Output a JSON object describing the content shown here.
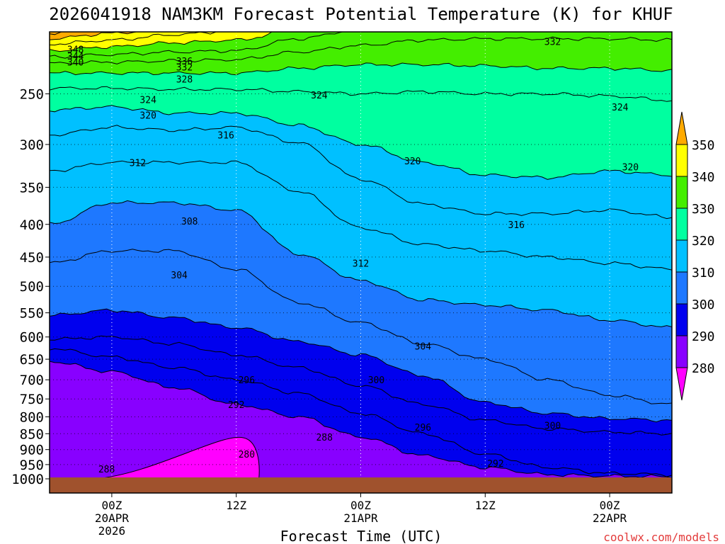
{
  "chart_data": {
    "type": "contour",
    "title": "2026041918 NAM3KM Forecast Potential Temperature (K) for KHUF",
    "xlabel": "Forecast Time (UTC)",
    "ylabel": "",
    "credit": "coolwx.com/models",
    "x_units": "hours from 2026041918",
    "xlim": [
      0,
      60
    ],
    "y_units": "hPa",
    "y_scale": "log",
    "ylim": [
      1000,
      200
    ],
    "y_ticks": [
      250,
      300,
      350,
      400,
      450,
      500,
      550,
      600,
      650,
      700,
      750,
      800,
      850,
      900,
      950,
      1000
    ],
    "x_ticks": [
      {
        "hour": 6,
        "lines": [
          "00Z",
          "20APR",
          "2026"
        ]
      },
      {
        "hour": 18,
        "lines": [
          "12Z"
        ]
      },
      {
        "hour": 30,
        "lines": [
          "00Z",
          "21APR"
        ]
      },
      {
        "hour": 42,
        "lines": [
          "12Z"
        ]
      },
      {
        "hour": 54,
        "lines": [
          "00Z",
          "22APR"
        ]
      }
    ],
    "colorbar": {
      "ticks": [
        280,
        290,
        300,
        310,
        320,
        330,
        340,
        350
      ],
      "bands": [
        {
          "from": 270,
          "to": 280,
          "color": "#ff00ff"
        },
        {
          "from": 280,
          "to": 290,
          "color": "#8800ff"
        },
        {
          "from": 290,
          "to": 300,
          "color": "#0000ee"
        },
        {
          "from": 300,
          "to": 310,
          "color": "#1e78ff"
        },
        {
          "from": 310,
          "to": 320,
          "color": "#00c0ff"
        },
        {
          "from": 320,
          "to": 330,
          "color": "#00ffa0"
        },
        {
          "from": 330,
          "to": 340,
          "color": "#44ee00"
        },
        {
          "from": 340,
          "to": 350,
          "color": "#ffff00"
        },
        {
          "from": 350,
          "to": 360,
          "color": "#ffaa00"
        }
      ]
    },
    "times": [
      0,
      6,
      12,
      18,
      24,
      30,
      36,
      42,
      48,
      54,
      60
    ],
    "isentropes": [
      {
        "theta": 288,
        "p": [
          655,
          680,
          720,
          765,
          800,
          860,
          920,
          960,
          985,
          990,
          992
        ]
      },
      {
        "theta": 292,
        "p": [
          625,
          645,
          670,
          700,
          735,
          790,
          850,
          915,
          960,
          980,
          985
        ]
      },
      {
        "theta": 296,
        "p": [
          605,
          600,
          615,
          640,
          670,
          715,
          765,
          810,
          835,
          845,
          850
        ]
      },
      {
        "theta": 300,
        "p": [
          555,
          545,
          560,
          580,
          610,
          640,
          690,
          760,
          790,
          805,
          810
        ]
      },
      {
        "theta": 304,
        "p": [
          460,
          440,
          440,
          470,
          530,
          570,
          615,
          650,
          700,
          740,
          765
        ]
      },
      {
        "theta": 308,
        "p": [
          400,
          370,
          370,
          380,
          445,
          490,
          525,
          535,
          545,
          565,
          580
        ]
      },
      {
        "theta": 312,
        "p": [
          330,
          320,
          320,
          320,
          355,
          405,
          430,
          440,
          450,
          460,
          470
        ]
      },
      {
        "theta": 316,
        "p": [
          290,
          282,
          285,
          282,
          298,
          340,
          372,
          385,
          385,
          380,
          390
        ]
      },
      {
        "theta": 320,
        "p": [
          265,
          262,
          268,
          268,
          280,
          300,
          320,
          335,
          338,
          330,
          335
        ]
      },
      {
        "theta": 324,
        "p": [
          245,
          245,
          246,
          246,
          248,
          250,
          248,
          250,
          250,
          252,
          256
        ]
      },
      {
        "theta": 328,
        "p": [
          232,
          232,
          232,
          232,
          228,
          225,
          225,
          226,
          228,
          228,
          230
        ]
      },
      {
        "theta": 332,
        "p": [
          224,
          223,
          222,
          221,
          215,
          210,
          206,
          205,
          205,
          205,
          206
        ]
      },
      {
        "theta": 336,
        "p": [
          219,
          217,
          215,
          214,
          205,
          198,
          196,
          195,
          195,
          196,
          197
        ]
      },
      {
        "theta": 340,
        "p": [
          214,
          211,
          208,
          206,
          198,
          193,
          191,
          190,
          190,
          191,
          192
        ]
      },
      {
        "theta": 344,
        "p": [
          209,
          206,
          202,
          199,
          193,
          190,
          189,
          188,
          188,
          189,
          190
        ]
      },
      {
        "theta": 348,
        "p": [
          205,
          201,
          197,
          195,
          190,
          188,
          187,
          187,
          187,
          187,
          188
        ]
      },
      {
        "theta": 352,
        "p": [
          201,
          197,
          194,
          192,
          189,
          187,
          187,
          187,
          187,
          187,
          187
        ]
      }
    ],
    "warm_pocket": {
      "theta": 280,
      "center_hour": 18,
      "center_p": 965
    },
    "contour_labels": [
      {
        "theta": 348,
        "hour": 2.5,
        "p": 213
      },
      {
        "theta": 344,
        "hour": 2.5,
        "p": 218
      },
      {
        "theta": 340,
        "hour": 2.5,
        "p": 223
      },
      {
        "theta": 336,
        "hour": 13,
        "p": 222
      },
      {
        "theta": 332,
        "hour": 13,
        "p": 227
      },
      {
        "theta": 328,
        "hour": 13,
        "p": 237
      },
      {
        "theta": 324,
        "hour": 9.5,
        "p": 255
      },
      {
        "theta": 320,
        "hour": 9.5,
        "p": 270
      },
      {
        "theta": 316,
        "hour": 17,
        "p": 290
      },
      {
        "theta": 312,
        "hour": 8.5,
        "p": 320
      },
      {
        "theta": 308,
        "hour": 13.5,
        "p": 395
      },
      {
        "theta": 304,
        "hour": 12.5,
        "p": 480
      },
      {
        "theta": 296,
        "hour": 19,
        "p": 700
      },
      {
        "theta": 292,
        "hour": 18,
        "p": 765
      },
      {
        "theta": 288,
        "hour": 26.5,
        "p": 860
      },
      {
        "theta": 280,
        "hour": 19,
        "p": 915
      },
      {
        "theta": 288,
        "hour": 5.5,
        "p": 965
      },
      {
        "theta": 324,
        "hour": 26,
        "p": 251
      },
      {
        "theta": 320,
        "hour": 35,
        "p": 318
      },
      {
        "theta": 316,
        "hour": 45,
        "p": 400
      },
      {
        "theta": 312,
        "hour": 30,
        "p": 460
      },
      {
        "theta": 304,
        "hour": 36,
        "p": 620
      },
      {
        "theta": 300,
        "hour": 31.5,
        "p": 700
      },
      {
        "theta": 296,
        "hour": 36,
        "p": 830
      },
      {
        "theta": 300,
        "hour": 48.5,
        "p": 825
      },
      {
        "theta": 292,
        "hour": 43,
        "p": 945
      },
      {
        "theta": 332,
        "hour": 48.5,
        "p": 207
      },
      {
        "theta": 324,
        "hour": 55,
        "p": 262
      },
      {
        "theta": 320,
        "hour": 56,
        "p": 325
      }
    ]
  }
}
